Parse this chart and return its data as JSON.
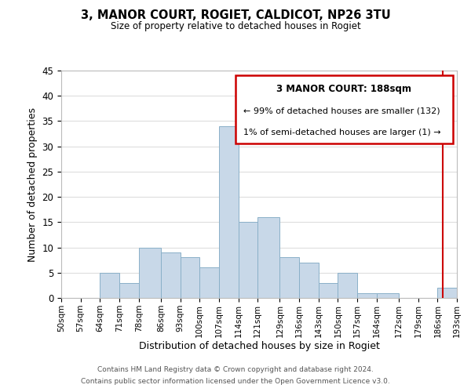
{
  "title": "3, MANOR COURT, ROGIET, CALDICOT, NP26 3TU",
  "subtitle": "Size of property relative to detached houses in Rogiet",
  "xlabel": "Distribution of detached houses by size in Rogiet",
  "ylabel": "Number of detached properties",
  "bar_color": "#c8d8e8",
  "bar_edge_color": "#8ab0c8",
  "bin_labels": [
    "50sqm",
    "57sqm",
    "64sqm",
    "71sqm",
    "78sqm",
    "86sqm",
    "93sqm",
    "100sqm",
    "107sqm",
    "114sqm",
    "121sqm",
    "129sqm",
    "136sqm",
    "143sqm",
    "150sqm",
    "157sqm",
    "164sqm",
    "172sqm",
    "179sqm",
    "186sqm",
    "193sqm"
  ],
  "bin_edges": [
    50,
    57,
    64,
    71,
    78,
    86,
    93,
    100,
    107,
    114,
    121,
    129,
    136,
    143,
    150,
    157,
    164,
    172,
    179,
    186,
    193
  ],
  "counts": [
    0,
    0,
    5,
    3,
    10,
    9,
    8,
    6,
    34,
    15,
    16,
    8,
    7,
    3,
    5,
    1,
    1,
    0,
    0,
    2,
    0
  ],
  "ylim": [
    0,
    45
  ],
  "yticks": [
    0,
    5,
    10,
    15,
    20,
    25,
    30,
    35,
    40,
    45
  ],
  "property_line_x": 188,
  "property_line_color": "#cc0000",
  "legend_title": "3 MANOR COURT: 188sqm",
  "legend_line1": "← 99% of detached houses are smaller (132)",
  "legend_line2": "1% of semi-detached houses are larger (1) →",
  "footer_line1": "Contains HM Land Registry data © Crown copyright and database right 2024.",
  "footer_line2": "Contains public sector information licensed under the Open Government Licence v3.0.",
  "background_color": "#ffffff",
  "grid_color": "#dddddd"
}
